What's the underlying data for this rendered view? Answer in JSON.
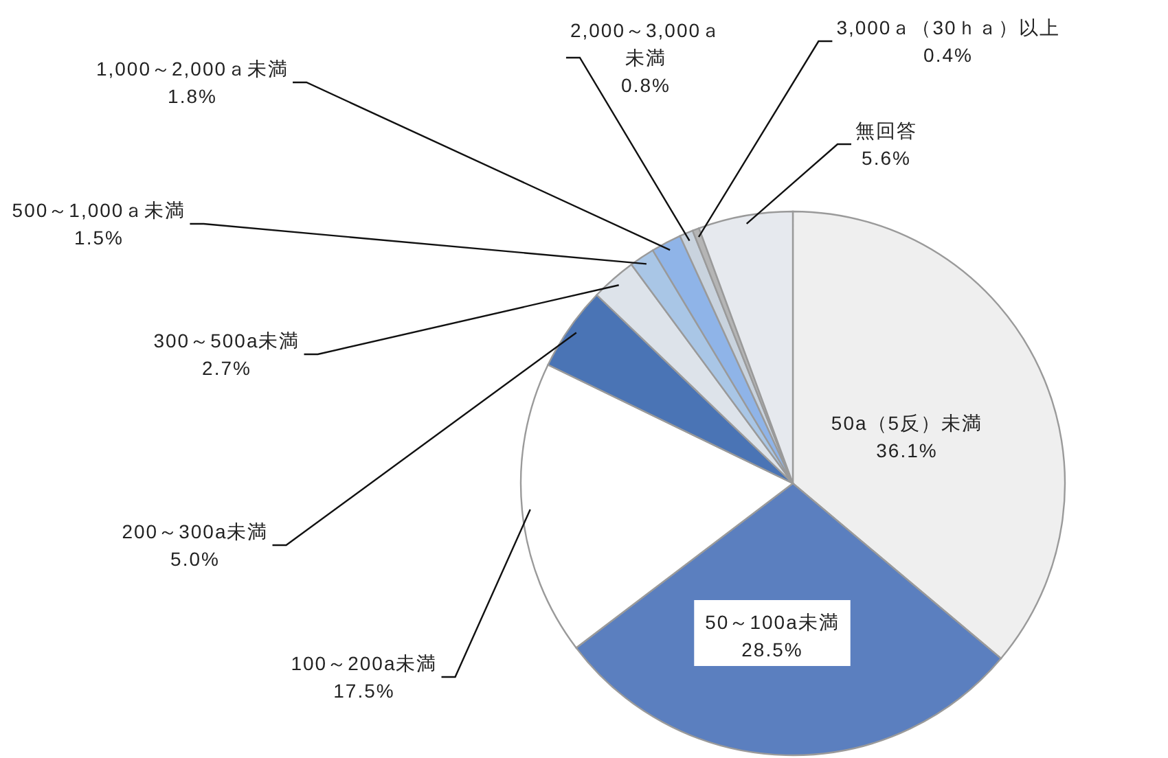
{
  "chart_data": {
    "type": "pie",
    "categories": [
      "50a（5反）未満",
      "50～100a未満",
      "100～200a未満",
      "200～300a未満",
      "300～500a未満",
      "500～1,000ａ未満",
      "1,000～2,000ａ未満",
      "2,000～3,000ａ未満",
      "3,000ａ（30ｈａ）以上",
      "無回答"
    ],
    "values": [
      36.1,
      28.5,
      17.5,
      5.0,
      2.7,
      1.5,
      1.8,
      0.8,
      0.4,
      5.6
    ],
    "value_labels": [
      "36.1%",
      "28.5%",
      "17.5%",
      "5.0%",
      "2.7%",
      "1.5%",
      "1.8%",
      "0.8%",
      "0.4%",
      "5.6%"
    ],
    "colors": [
      "#efefef",
      "#5b7fbf",
      "#ffffff",
      "#4a74b5",
      "#dde3ea",
      "#a9c6e6",
      "#8fb4e8",
      "#c9d3de",
      "#b5b5b5",
      "#e6e9ee"
    ],
    "legend": false
  }
}
